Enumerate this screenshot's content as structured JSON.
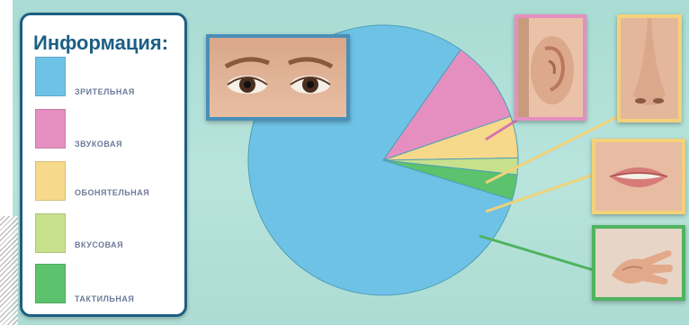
{
  "legend": {
    "title": "Информация:",
    "items": [
      {
        "label": "ЗРИТЕЛЬНАЯ",
        "color": "#6ec2e6"
      },
      {
        "label": "ЗВУКОВАЯ",
        "color": "#e58fc1"
      },
      {
        "label": "ОБОНЯТЕЛЬНАЯ",
        "color": "#f7d98b"
      },
      {
        "label": "ВКУСОВАЯ",
        "color": "#c6e08c"
      },
      {
        "label": "ТАКТИЛЬНАЯ",
        "color": "#5cc26d"
      }
    ]
  },
  "chart_data": {
    "type": "pie",
    "title": "",
    "categories": [
      "ЗРИТЕЛЬНАЯ",
      "ЗВУКОВАЯ",
      "ОБОНЯТЕЛЬНАЯ",
      "ВКУСОВАЯ",
      "ТАКТИЛЬНАЯ"
    ],
    "values": [
      80,
      10,
      5,
      2,
      3
    ],
    "colors": [
      "#6ec2e6",
      "#e58fc1",
      "#f7d98b",
      "#c6e08c",
      "#5cc26d"
    ]
  },
  "photos": {
    "eyes": {
      "icon": "eyes-photo",
      "border_color": "#4a8fb8"
    },
    "ear": {
      "icon": "ear-photo",
      "border_color": "#e58fc1"
    },
    "nose": {
      "icon": "nose-photo",
      "border_color": "#f3d27a"
    },
    "mouth": {
      "icon": "mouth-photo",
      "border_color": "#f3d27a"
    },
    "hand": {
      "icon": "hand-photo",
      "border_color": "#4fb35f"
    }
  }
}
